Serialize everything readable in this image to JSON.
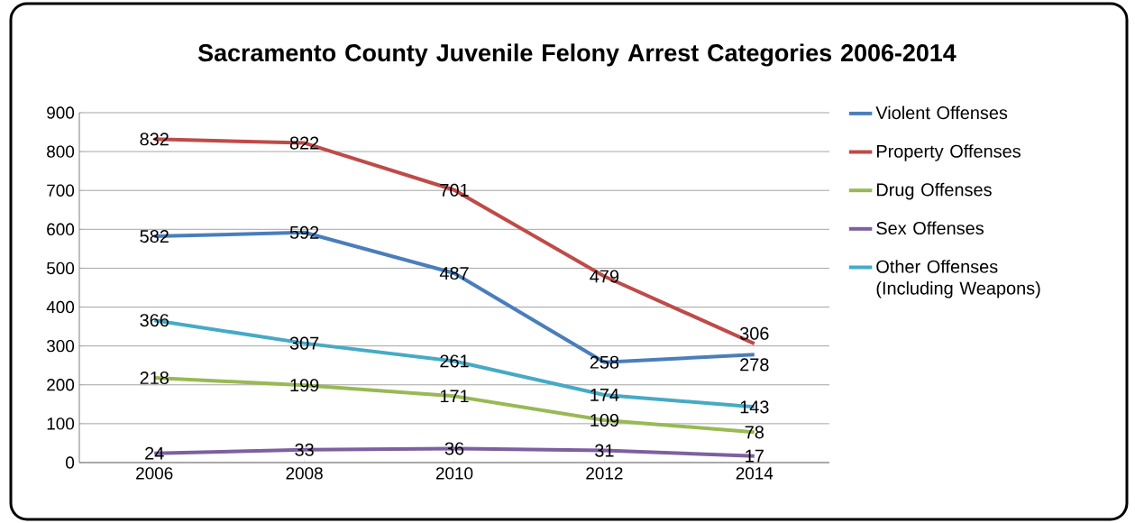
{
  "chart_data": {
    "type": "line",
    "title": "Sacramento County Juvenile Felony Arrest Categories 2006-2014",
    "categories": [
      "2006",
      "2008",
      "2010",
      "2012",
      "2014"
    ],
    "series": [
      {
        "name": "Violent Offenses",
        "color": "#4a7ebb",
        "values": [
          582,
          592,
          487,
          258,
          278
        ]
      },
      {
        "name": "Property Offenses",
        "color": "#be4b48",
        "values": [
          832,
          822,
          701,
          479,
          306
        ]
      },
      {
        "name": "Drug Offenses",
        "color": "#98b954",
        "values": [
          218,
          199,
          171,
          109,
          78
        ]
      },
      {
        "name": "Sex Offenses",
        "color": "#7d60a0",
        "values": [
          24,
          33,
          36,
          31,
          17
        ]
      },
      {
        "name": "Other Offenses (Including Weapons)",
        "color": "#46aac5",
        "values": [
          366,
          307,
          261,
          174,
          143
        ]
      }
    ],
    "ylim": [
      0,
      900
    ],
    "yticks": [
      0,
      100,
      200,
      300,
      400,
      500,
      600,
      700,
      800,
      900
    ],
    "grid": "y",
    "legend": "right",
    "data_labels": true,
    "marker": "none",
    "line_style": "solid"
  }
}
